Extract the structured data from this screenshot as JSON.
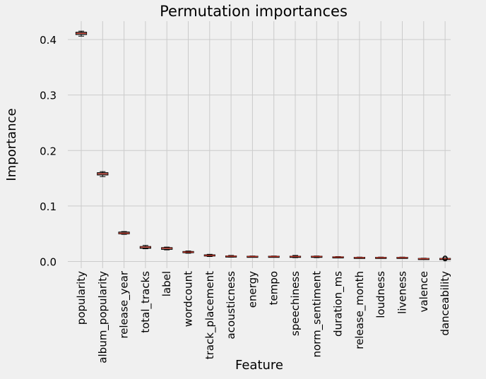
{
  "chart_data": {
    "type": "box",
    "title": "Permutation importances",
    "xlabel": "Feature",
    "ylabel": "Importance",
    "ylim": [
      -0.012,
      0.433
    ],
    "yticks": [
      0.0,
      0.1,
      0.2,
      0.3,
      0.4
    ],
    "ytick_labels": [
      "0.0",
      "0.1",
      "0.2",
      "0.3",
      "0.4"
    ],
    "grid": true,
    "categories": [
      "popularity",
      "album_popularity",
      "release_year",
      "total_tracks",
      "label",
      "wordcount",
      "track_placement",
      "acousticness",
      "energy",
      "tempo",
      "speechiness",
      "norm_sentiment",
      "duration_ms",
      "release_month",
      "loudness",
      "liveness",
      "valence",
      "danceability"
    ],
    "boxes": [
      {
        "min": 0.406,
        "q1": 0.409,
        "median": 0.411,
        "q3": 0.413,
        "max": 0.415
      },
      {
        "min": 0.153,
        "q1": 0.156,
        "median": 0.158,
        "q3": 0.16,
        "max": 0.162
      },
      {
        "min": 0.049,
        "q1": 0.05,
        "median": 0.051,
        "q3": 0.053,
        "max": 0.054
      },
      {
        "min": 0.023,
        "q1": 0.024,
        "median": 0.026,
        "q3": 0.027,
        "max": 0.029
      },
      {
        "min": 0.021,
        "q1": 0.022,
        "median": 0.024,
        "q3": 0.025,
        "max": 0.026
      },
      {
        "min": 0.015,
        "q1": 0.016,
        "median": 0.017,
        "q3": 0.018,
        "max": 0.019
      },
      {
        "min": 0.009,
        "q1": 0.01,
        "median": 0.011,
        "q3": 0.012,
        "max": 0.013
      },
      {
        "min": 0.008,
        "q1": 0.009,
        "median": 0.0095,
        "q3": 0.01,
        "max": 0.011
      },
      {
        "min": 0.008,
        "q1": 0.0085,
        "median": 0.009,
        "q3": 0.0095,
        "max": 0.01
      },
      {
        "min": 0.008,
        "q1": 0.0085,
        "median": 0.009,
        "q3": 0.0095,
        "max": 0.01
      },
      {
        "min": 0.007,
        "q1": 0.008,
        "median": 0.009,
        "q3": 0.0095,
        "max": 0.011
      },
      {
        "min": 0.007,
        "q1": 0.008,
        "median": 0.009,
        "q3": 0.0095,
        "max": 0.01
      },
      {
        "min": 0.007,
        "q1": 0.0075,
        "median": 0.008,
        "q3": 0.0085,
        "max": 0.009
      },
      {
        "min": 0.006,
        "q1": 0.0065,
        "median": 0.007,
        "q3": 0.0075,
        "max": 0.008
      },
      {
        "min": 0.006,
        "q1": 0.0065,
        "median": 0.007,
        "q3": 0.0075,
        "max": 0.008
      },
      {
        "min": 0.006,
        "q1": 0.0065,
        "median": 0.007,
        "q3": 0.0075,
        "max": 0.008
      },
      {
        "min": 0.004,
        "q1": 0.0045,
        "median": 0.005,
        "q3": 0.0055,
        "max": 0.006
      },
      {
        "min": 0.004,
        "q1": 0.0045,
        "median": 0.005,
        "q3": 0.0055,
        "max": 0.006,
        "fliers": [
          0.0048,
          0.0062
        ]
      }
    ],
    "colors": {
      "background": "#f0f0f0",
      "grid": "#cbcbcb",
      "box_edge": "#000000",
      "median": "#c0392b",
      "text": "#000000"
    }
  }
}
